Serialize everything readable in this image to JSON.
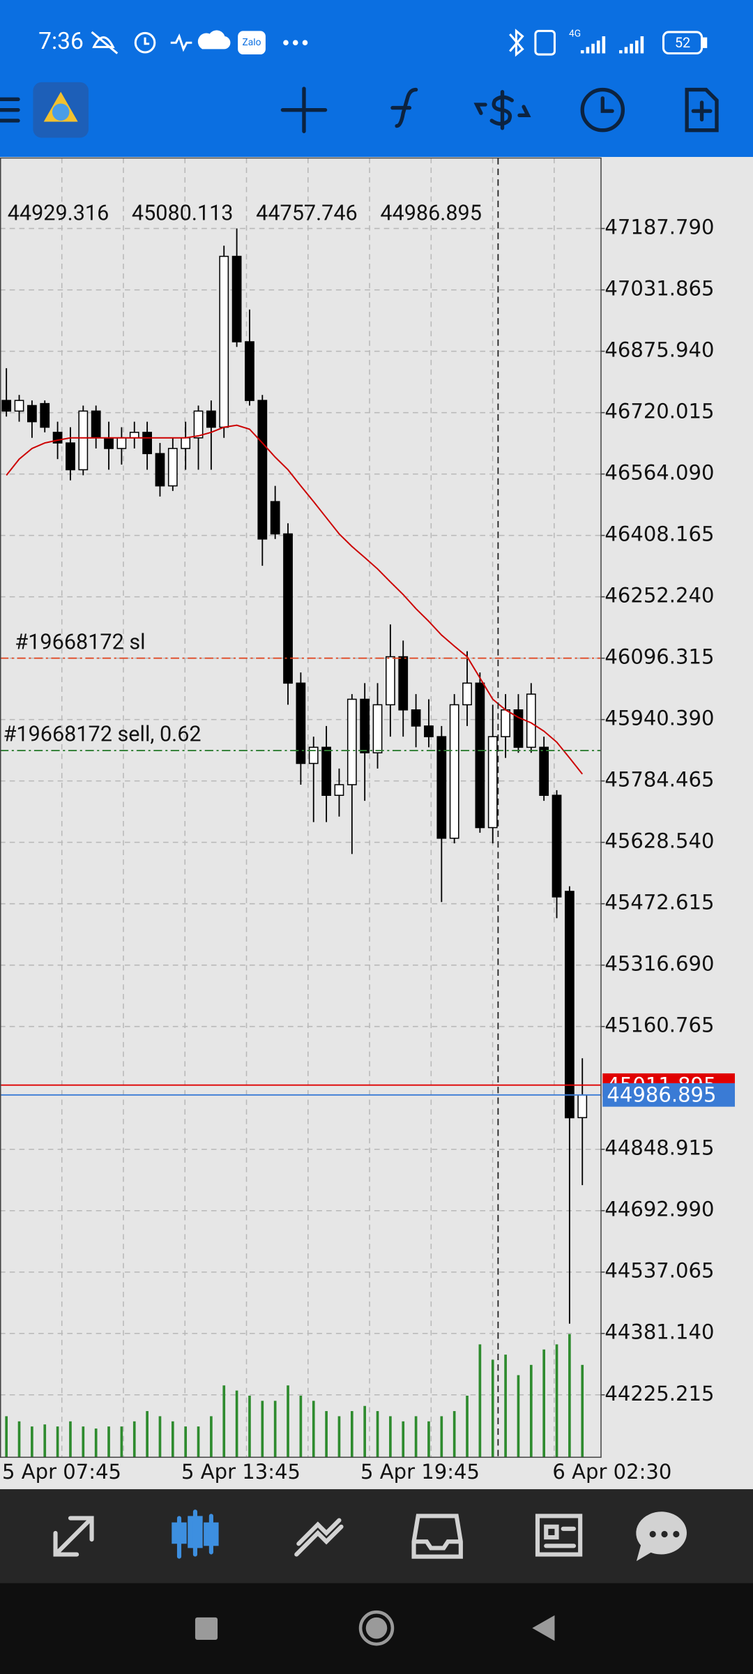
{
  "status_bar": {
    "time": "7:36",
    "zalo": "Zalo",
    "network": "4G",
    "battery": "52"
  },
  "chart_data": {
    "type": "candlestick",
    "categories": [
      "5 Apr 07:45",
      null,
      null,
      null,
      null,
      null,
      null,
      null,
      null,
      null,
      null,
      null,
      null,
      null,
      "5 Apr 13:45",
      null,
      null,
      null,
      null,
      null,
      null,
      null,
      null,
      null,
      null,
      null,
      null,
      null,
      "5 Apr 19:45",
      null,
      null,
      null,
      null,
      null,
      null,
      null,
      null,
      null,
      null,
      null,
      null,
      null,
      null,
      "6 Apr 02:30",
      null,
      null
    ],
    "open": [
      46751,
      46724,
      46738,
      46743,
      46670,
      46643,
      46575,
      46724,
      46656,
      46629,
      46656,
      46670,
      46616,
      46534,
      46629,
      46656,
      46724,
      46683,
      47117,
      46900,
      46751,
      46494,
      46412,
      46033,
      45829,
      45870,
      45748,
      45775,
      45992,
      45856,
      45978,
      46100,
      45965,
      45924,
      45897,
      45639,
      45978,
      46033,
      45666,
      45897,
      45965,
      45870,
      45870,
      45748,
      45504,
      44929.316
    ],
    "high": [
      46833,
      46765,
      46751,
      46751,
      46697,
      46683,
      46738,
      46738,
      46697,
      46683,
      46697,
      46697,
      46643,
      46656,
      46697,
      46738,
      46751,
      47144,
      47188,
      46982,
      46765,
      46534,
      46439,
      46060,
      45897,
      45924,
      45816,
      46005,
      46033,
      46033,
      46182,
      46141,
      46005,
      45992,
      45924,
      46005,
      46114,
      46060,
      45978,
      46005,
      46005,
      46033,
      45897,
      45761,
      45517,
      45080.113
    ],
    "low": [
      46710,
      46697,
      46656,
      46670,
      46602,
      46548,
      46561,
      46629,
      46575,
      46588,
      46629,
      46575,
      46507,
      46521,
      46575,
      46575,
      46575,
      46656,
      46887,
      46738,
      46331,
      46399,
      45978,
      45775,
      45680,
      45680,
      45694,
      45599,
      45734,
      45816,
      45897,
      45897,
      45870,
      45870,
      45477,
      45626,
      45924,
      45653,
      45626,
      45843,
      45856,
      45856,
      45734,
      45436,
      44406,
      44757.746
    ],
    "close": [
      46724,
      46751,
      46697,
      46683,
      46643,
      46575,
      46724,
      46656,
      46629,
      46656,
      46670,
      46616,
      46534,
      46629,
      46656,
      46724,
      46683,
      47117,
      46900,
      46751,
      46399,
      46412,
      46033,
      45829,
      45870,
      45748,
      45775,
      45992,
      45856,
      45978,
      46100,
      45965,
      45924,
      45897,
      45639,
      45978,
      46033,
      45666,
      45897,
      45965,
      45870,
      46005,
      45748,
      45490,
      44929,
      44986.895
    ],
    "bull_color": "#ffffff",
    "bear_color": "#000000",
    "ma": {
      "color": "#cc0000",
      "values": [
        46561,
        46602,
        46629,
        46643,
        46650,
        46656,
        46656,
        46656,
        46656,
        46656,
        46656,
        46656,
        46656,
        46656,
        46656,
        46661,
        46670,
        46683,
        46688,
        46678,
        46643,
        46607,
        46575,
        46534,
        46494,
        46453,
        46412,
        46380,
        46352,
        46323,
        46290,
        46258,
        46222,
        46190,
        46155,
        46127,
        46100,
        46046,
        45992,
        45965,
        45946,
        45932,
        45911,
        45883,
        45843,
        45802
      ]
    },
    "volume": [
      40,
      35,
      30,
      32,
      30,
      35,
      30,
      28,
      30,
      30,
      35,
      45,
      40,
      35,
      30,
      30,
      40,
      70,
      65,
      60,
      55,
      55,
      70,
      60,
      55,
      45,
      40,
      45,
      50,
      45,
      40,
      35,
      40,
      35,
      40,
      45,
      60,
      110,
      95,
      100,
      80,
      90,
      105,
      110,
      120,
      90
    ],
    "volume_color": "#2e8b2e",
    "volume_ylim": [
      0,
      130
    ],
    "ylim": [
      44066.6,
      47366.8
    ],
    "yticks": [
      {
        "value": 47187.79,
        "label": "47187.790"
      },
      47031.865,
      {
        "value": 46875.94,
        "label": "46875.940"
      },
      46720.015,
      {
        "value": 46564.09,
        "label": "46564.090"
      },
      46408.165,
      {
        "value": 46252.24,
        "label": "46252.240"
      },
      46096.315,
      {
        "value": 45940.39,
        "label": "45940.390"
      },
      45784.465,
      {
        "value": 45628.54,
        "label": "45628.540"
      },
      45472.615,
      {
        "value": 45316.69,
        "label": "45316.690"
      },
      45160.765,
      44848.915,
      {
        "value": 44692.99,
        "label": "44692.990"
      },
      44537.065,
      {
        "value": 44381.14,
        "label": "44381.140"
      },
      44225.215
    ],
    "grid": true,
    "lines": [
      {
        "label": "#19668172 sl",
        "value": 46096.315,
        "color": "#e0401a",
        "style": "dashdot"
      },
      {
        "label": "#19668172 sell, 0.62",
        "value": 45861.7,
        "color": "#2e7d32",
        "style": "dashdot"
      },
      {
        "value": 45011.895,
        "color": "#e00000",
        "style": "solid"
      },
      {
        "value": 44986.895,
        "color": "#3a7bd5",
        "style": "solid"
      }
    ]
  }
}
